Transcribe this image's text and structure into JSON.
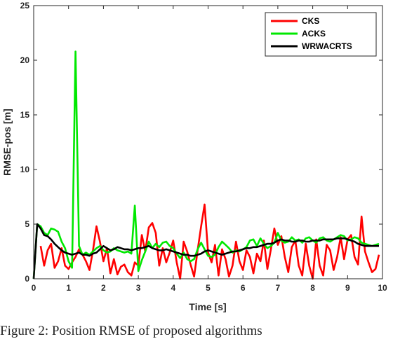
{
  "caption": "Figure 2: Position RMSE of proposed algorithms",
  "chart_data": {
    "type": "line",
    "title": "",
    "xlabel": "Time [s]",
    "ylabel": "RMSE-pos [m]",
    "xlim": [
      0,
      10
    ],
    "ylim": [
      0,
      25
    ],
    "xticks": [
      0,
      1,
      2,
      3,
      4,
      5,
      6,
      7,
      8,
      9,
      10
    ],
    "yticks": [
      0,
      5,
      10,
      15,
      20,
      25
    ],
    "grid": false,
    "legend_position": "top-right",
    "series": [
      {
        "name": "CKS",
        "color": "#ff0000",
        "x": [
          0.2,
          0.3,
          0.4,
          0.5,
          0.6,
          0.7,
          0.8,
          0.9,
          1.0,
          1.1,
          1.2,
          1.3,
          1.4,
          1.5,
          1.6,
          1.7,
          1.8,
          1.9,
          2.0,
          2.1,
          2.2,
          2.3,
          2.4,
          2.5,
          2.6,
          2.7,
          2.8,
          2.9,
          3.0,
          3.1,
          3.2,
          3.3,
          3.4,
          3.5,
          3.6,
          3.7,
          3.8,
          3.9,
          4.0,
          4.1,
          4.2,
          4.3,
          4.4,
          4.5,
          4.6,
          4.7,
          4.8,
          4.9,
          5.0,
          5.1,
          5.2,
          5.3,
          5.4,
          5.5,
          5.6,
          5.7,
          5.8,
          5.9,
          6.0,
          6.1,
          6.2,
          6.3,
          6.4,
          6.5,
          6.6,
          6.7,
          6.8,
          6.9,
          7.0,
          7.1,
          7.2,
          7.3,
          7.4,
          7.5,
          7.6,
          7.7,
          7.8,
          7.9,
          8.0,
          8.1,
          8.2,
          8.3,
          8.4,
          8.5,
          8.6,
          8.7,
          8.8,
          8.9,
          9.0,
          9.1,
          9.2,
          9.3,
          9.4,
          9.5,
          9.6,
          9.7,
          9.8,
          9.9
        ],
        "values": [
          3.0,
          1.2,
          2.6,
          3.2,
          1.0,
          1.6,
          2.8,
          1.2,
          0.9,
          1.5,
          2.0,
          2.7,
          2.2,
          1.6,
          0.8,
          2.6,
          4.8,
          3.4,
          1.6,
          2.8,
          0.5,
          1.8,
          0.4,
          1.1,
          1.3,
          0.6,
          0.3,
          1.5,
          1.2,
          4.0,
          2.5,
          4.7,
          5.1,
          4.2,
          1.2,
          2.8,
          1.5,
          2.4,
          3.5,
          1.5,
          0.0,
          3.4,
          2.5,
          1.3,
          0.2,
          2.6,
          4.8,
          6.8,
          2.4,
          1.5,
          3.1,
          0.3,
          2.7,
          1.8,
          0.2,
          1.2,
          3.4,
          1.6,
          0.8,
          2.6,
          2.0,
          0.5,
          2.3,
          1.6,
          3.5,
          0.9,
          2.7,
          4.6,
          3.1,
          3.9,
          2.0,
          0.6,
          2.9,
          3.5,
          1.2,
          0.3,
          3.2,
          1.2,
          0.0,
          3.6,
          1.2,
          0.3,
          3.1,
          2.6,
          0.8,
          2.0,
          3.8,
          1.8,
          3.6,
          4.0,
          2.0,
          1.3,
          5.7,
          2.5,
          1.5,
          0.6,
          0.9,
          2.2
        ]
      },
      {
        "name": "ACKS",
        "color": "#00e800",
        "x": [
          0.0,
          0.1,
          0.2,
          0.3,
          0.4,
          0.5,
          0.6,
          0.7,
          0.8,
          0.9,
          1.0,
          1.1,
          1.2,
          1.3,
          1.4,
          1.5,
          1.6,
          1.7,
          1.8,
          1.9,
          2.0,
          2.1,
          2.2,
          2.3,
          2.4,
          2.5,
          2.6,
          2.7,
          2.8,
          2.9,
          3.0,
          3.1,
          3.2,
          3.3,
          3.4,
          3.5,
          3.6,
          3.7,
          3.8,
          3.9,
          4.0,
          4.1,
          4.2,
          4.3,
          4.4,
          4.5,
          4.6,
          4.7,
          4.8,
          4.9,
          5.0,
          5.1,
          5.2,
          5.3,
          5.4,
          5.5,
          5.6,
          5.7,
          5.8,
          5.9,
          6.0,
          6.1,
          6.2,
          6.3,
          6.4,
          6.5,
          6.6,
          6.7,
          6.8,
          6.9,
          7.0,
          7.1,
          7.2,
          7.3,
          7.4,
          7.5,
          7.6,
          7.7,
          7.8,
          7.9,
          8.0,
          8.1,
          8.2,
          8.3,
          8.4,
          8.5,
          8.6,
          8.7,
          8.8,
          8.9,
          9.0,
          9.1,
          9.2,
          9.3,
          9.4,
          9.5,
          9.6,
          9.7,
          9.8,
          9.9
        ],
        "values": [
          0.0,
          5.0,
          4.8,
          4.2,
          4.0,
          4.6,
          4.5,
          4.3,
          3.4,
          2.8,
          1.6,
          1.0,
          20.8,
          3.0,
          2.2,
          2.4,
          2.2,
          2.5,
          2.8,
          3.0,
          2.6,
          2.4,
          2.5,
          2.8,
          2.6,
          2.5,
          2.4,
          2.5,
          2.3,
          6.7,
          0.7,
          1.7,
          2.5,
          3.4,
          2.8,
          3.2,
          2.9,
          3.3,
          3.4,
          3.0,
          2.8,
          2.3,
          1.9,
          2.4,
          1.8,
          1.6,
          1.8,
          2.7,
          3.3,
          2.7,
          2.1,
          2.0,
          2.2,
          2.9,
          3.4,
          3.1,
          2.8,
          2.4,
          2.6,
          2.5,
          2.7,
          2.9,
          3.5,
          3.6,
          3.0,
          3.7,
          3.2,
          2.8,
          3.0,
          3.3,
          4.2,
          3.5,
          3.3,
          3.4,
          3.8,
          3.5,
          3.6,
          3.3,
          3.7,
          3.8,
          3.5,
          3.3,
          3.7,
          3.8,
          3.5,
          3.4,
          3.6,
          3.8,
          4.0,
          3.9,
          3.5,
          3.6,
          3.8,
          3.7,
          3.3,
          3.2,
          3.1,
          3.0,
          3.1,
          3.2
        ]
      },
      {
        "name": "WRWACRTS",
        "color": "#000000",
        "x": [
          0.0,
          0.1,
          0.2,
          0.3,
          0.4,
          0.5,
          0.6,
          0.7,
          0.8,
          0.9,
          1.0,
          1.1,
          1.2,
          1.3,
          1.4,
          1.5,
          1.6,
          1.7,
          1.8,
          1.9,
          2.0,
          2.1,
          2.2,
          2.3,
          2.4,
          2.5,
          2.6,
          2.7,
          2.8,
          2.9,
          3.0,
          3.1,
          3.2,
          3.3,
          3.4,
          3.5,
          3.6,
          3.7,
          3.8,
          3.9,
          4.0,
          4.1,
          4.2,
          4.3,
          4.4,
          4.5,
          4.6,
          4.7,
          4.8,
          4.9,
          5.0,
          5.1,
          5.2,
          5.3,
          5.4,
          5.5,
          5.6,
          5.7,
          5.8,
          5.9,
          6.0,
          6.1,
          6.2,
          6.3,
          6.4,
          6.5,
          6.6,
          6.7,
          6.8,
          6.9,
          7.0,
          7.1,
          7.2,
          7.3,
          7.4,
          7.5,
          7.6,
          7.7,
          7.8,
          7.9,
          8.0,
          8.1,
          8.2,
          8.3,
          8.4,
          8.5,
          8.6,
          8.7,
          8.8,
          8.9,
          9.0,
          9.1,
          9.2,
          9.3,
          9.4,
          9.5,
          9.6,
          9.7,
          9.8,
          9.9
        ],
        "values": [
          0.0,
          5.0,
          4.6,
          4.0,
          3.9,
          3.6,
          3.2,
          2.9,
          2.6,
          2.4,
          2.3,
          2.2,
          2.3,
          2.4,
          2.2,
          2.2,
          2.1,
          2.3,
          2.4,
          2.7,
          3.0,
          2.8,
          2.6,
          2.7,
          2.9,
          2.8,
          2.7,
          2.7,
          2.6,
          2.7,
          2.8,
          2.8,
          2.9,
          3.0,
          2.8,
          2.7,
          2.6,
          2.6,
          2.7,
          2.6,
          2.5,
          2.4,
          2.3,
          2.2,
          2.2,
          2.1,
          2.1,
          2.2,
          2.3,
          2.5,
          2.6,
          2.5,
          2.4,
          2.3,
          2.2,
          2.3,
          2.4,
          2.5,
          2.5,
          2.6,
          2.7,
          2.8,
          2.8,
          2.9,
          2.9,
          3.0,
          3.1,
          3.2,
          3.2,
          3.3,
          3.5,
          3.6,
          3.5,
          3.5,
          3.4,
          3.4,
          3.5,
          3.5,
          3.4,
          3.4,
          3.5,
          3.5,
          3.5,
          3.6,
          3.6,
          3.6,
          3.6,
          3.7,
          3.7,
          3.7,
          3.6,
          3.5,
          3.4,
          3.2,
          3.1,
          3.0,
          3.0,
          3.0,
          3.0,
          3.0
        ]
      }
    ]
  }
}
